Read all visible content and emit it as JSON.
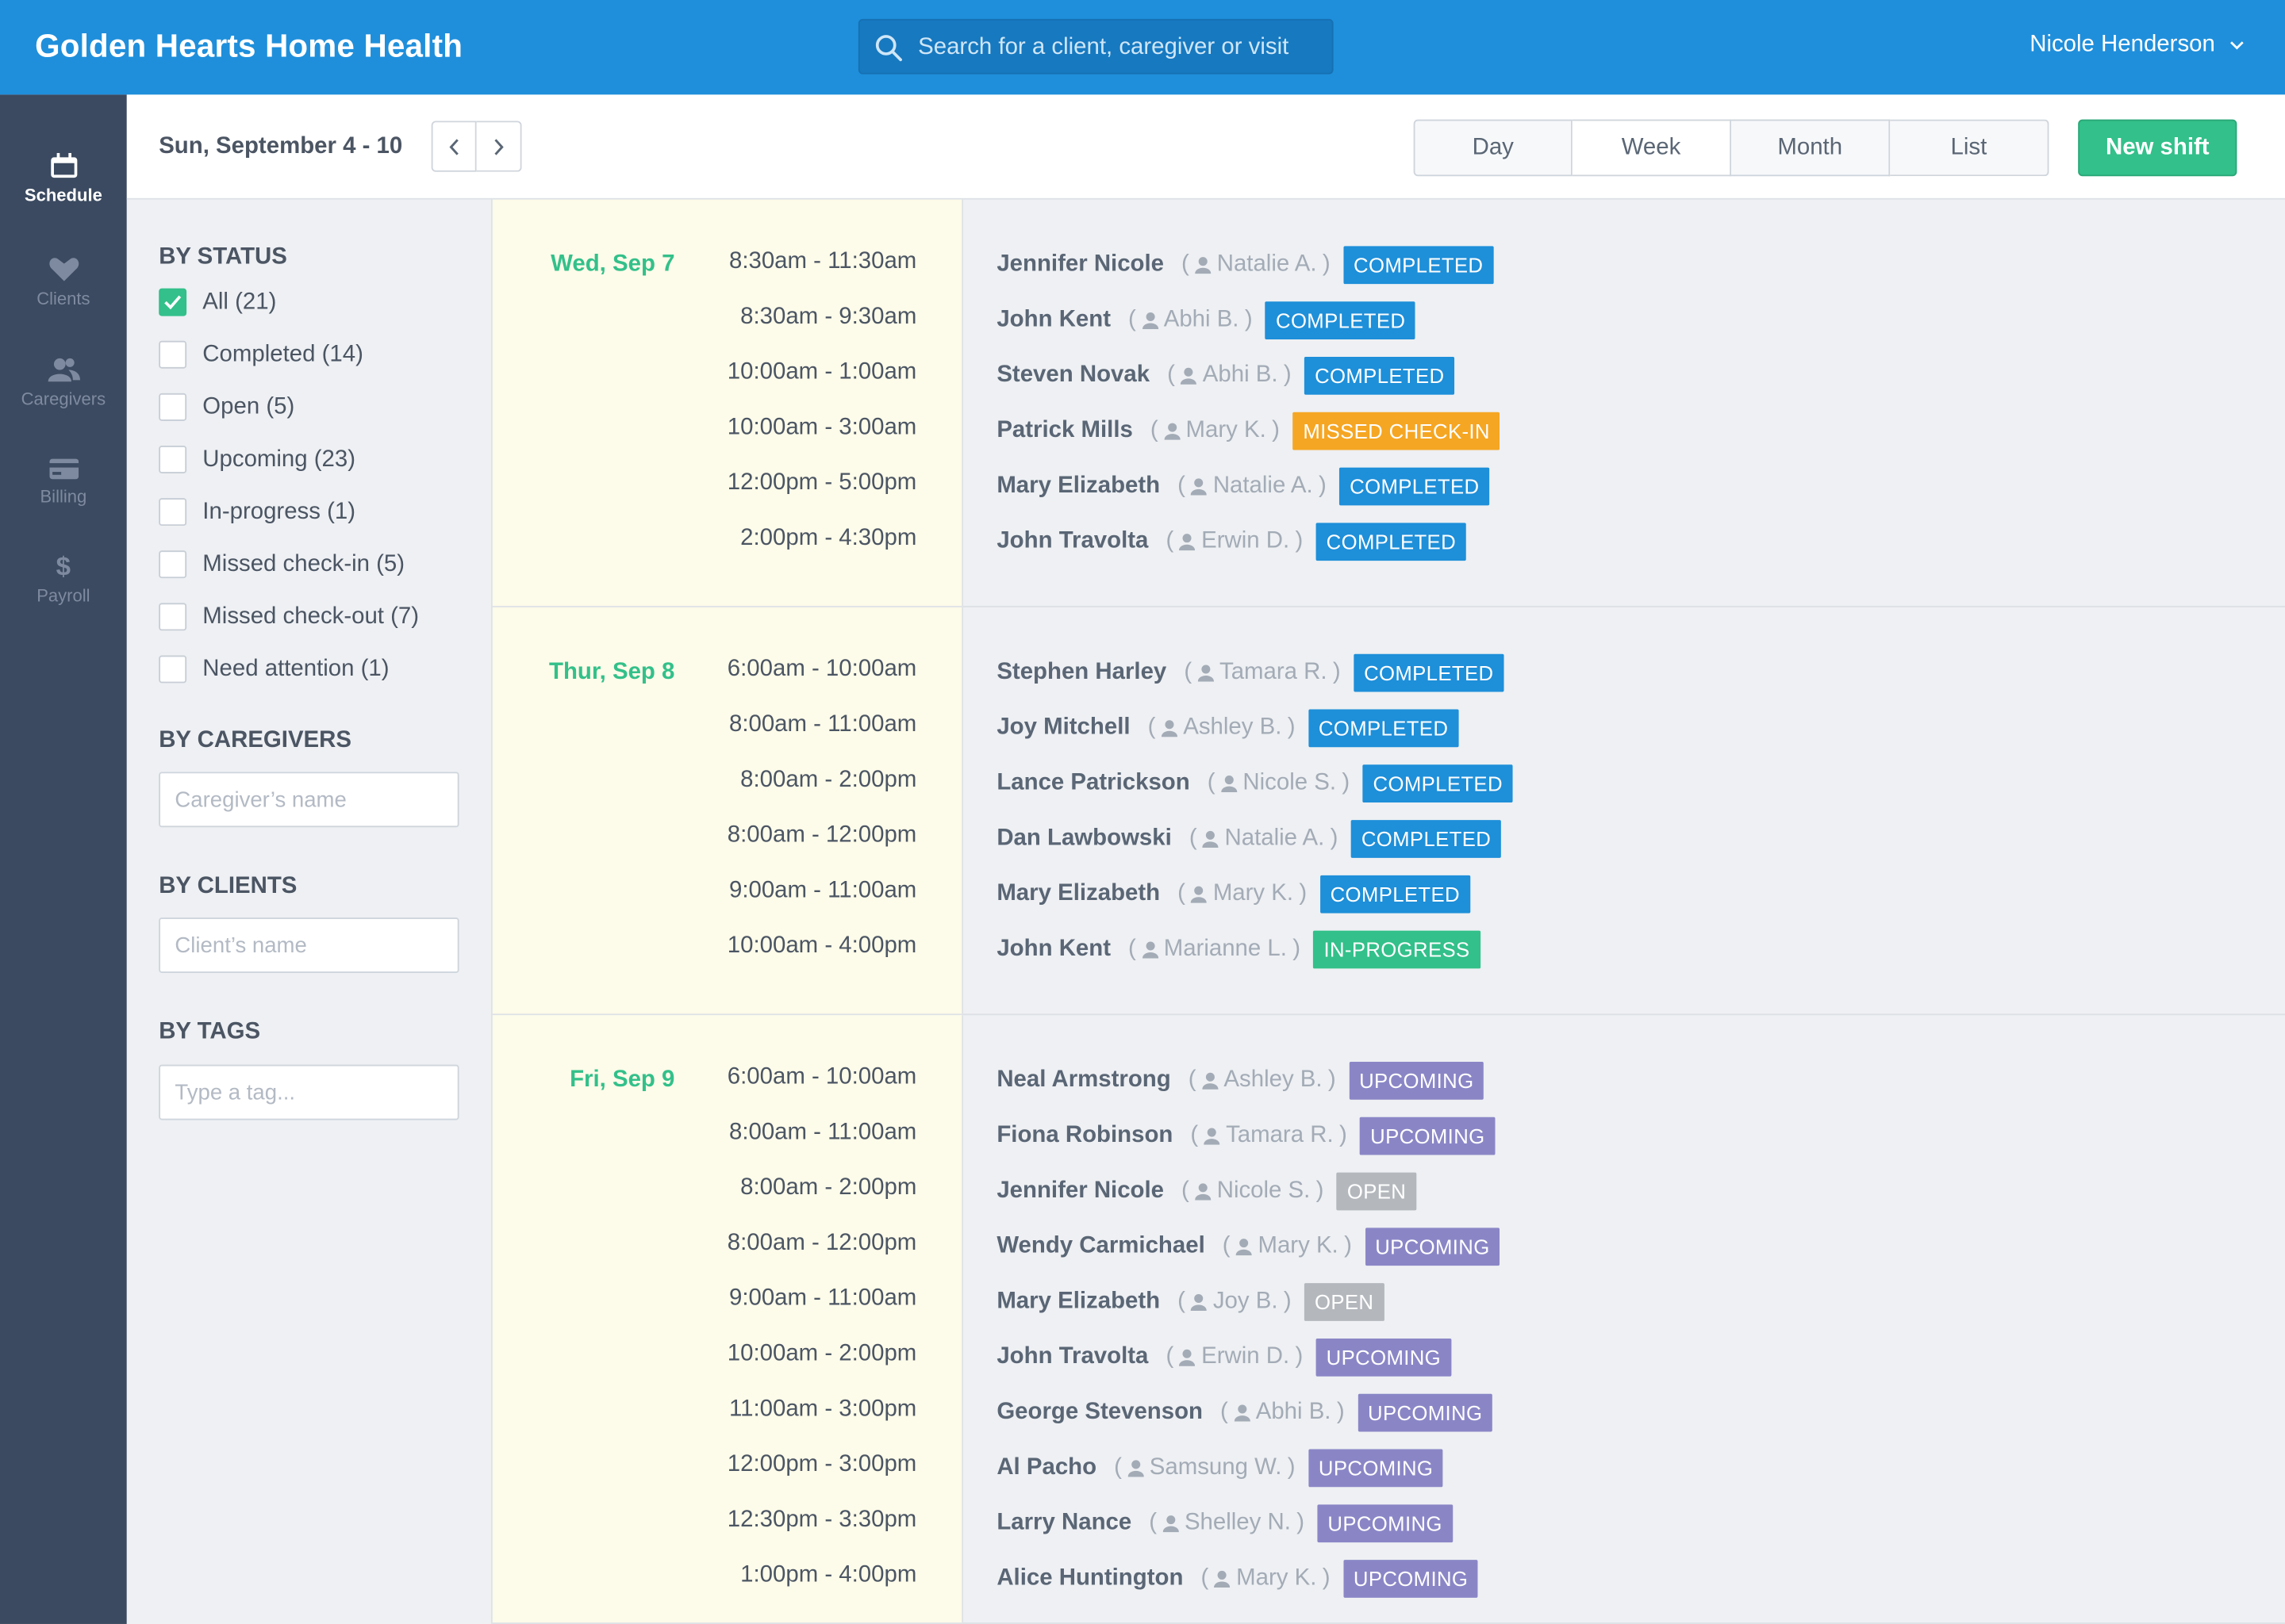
{
  "app": {
    "title": "Golden Hearts Home Health"
  },
  "search": {
    "placeholder": "Search for a client, caregiver or visit"
  },
  "user": {
    "name": "Nicole Henderson"
  },
  "nav": [
    {
      "label": "Schedule",
      "icon": "calendar-icon",
      "active": true
    },
    {
      "label": "Clients",
      "icon": "heart-icon",
      "active": false
    },
    {
      "label": "Caregivers",
      "icon": "people-icon",
      "active": false
    },
    {
      "label": "Billing",
      "icon": "credit-card-icon",
      "active": false
    },
    {
      "label": "Payroll",
      "icon": "dollar-icon",
      "active": false
    }
  ],
  "header": {
    "range": "Sun, September 4 - 10",
    "views": [
      "Day",
      "Week",
      "Month",
      "List"
    ],
    "active_view": "Week",
    "new_shift": "New shift"
  },
  "filters": {
    "by_status": "BY STATUS",
    "statuses": [
      {
        "label": "All (21)",
        "checked": true
      },
      {
        "label": "Completed (14)",
        "checked": false
      },
      {
        "label": "Open (5)",
        "checked": false
      },
      {
        "label": "Upcoming (23)",
        "checked": false
      },
      {
        "label": "In-progress (1)",
        "checked": false
      },
      {
        "label": "Missed check-in (5)",
        "checked": false
      },
      {
        "label": "Missed check-out (7)",
        "checked": false
      },
      {
        "label": "Need attention (1)",
        "checked": false
      }
    ],
    "by_caregivers": "BY CAREGIVERS",
    "caregiver_placeholder": "Caregiver’s name",
    "by_clients": "BY CLIENTS",
    "client_placeholder": "Client’s name",
    "by_tags": "BY TAGS",
    "tag_placeholder": "Type a tag..."
  },
  "status_colors": {
    "COMPLETED": "#1e8fd9",
    "MISSED CHECK-IN": "#f5a623",
    "IN-PROGRESS": "#33c08a",
    "UPCOMING": "#8a86c6",
    "OPEN": "#b4b8bd"
  },
  "days": [
    {
      "label": "Wed, Sep 7",
      "shifts": [
        {
          "time": "8:30am - 11:30am",
          "client": "Jennifer Nicole",
          "caregiver": "Natalie A.",
          "status": "COMPLETED"
        },
        {
          "time": "8:30am - 9:30am",
          "client": "John Kent",
          "caregiver": "Abhi B.",
          "status": "COMPLETED"
        },
        {
          "time": "10:00am - 1:00am",
          "client": "Steven Novak",
          "caregiver": "Abhi B.",
          "status": "COMPLETED"
        },
        {
          "time": "10:00am - 3:00am",
          "client": "Patrick Mills",
          "caregiver": "Mary K.",
          "status": "MISSED CHECK-IN"
        },
        {
          "time": "12:00pm - 5:00pm",
          "client": "Mary Elizabeth",
          "caregiver": "Natalie A.",
          "status": "COMPLETED"
        },
        {
          "time": "2:00pm - 4:30pm",
          "client": "John Travolta",
          "caregiver": "Erwin D.",
          "status": "COMPLETED"
        }
      ]
    },
    {
      "label": "Thur, Sep 8",
      "shifts": [
        {
          "time": "6:00am - 10:00am",
          "client": "Stephen Harley",
          "caregiver": "Tamara R.",
          "status": "COMPLETED"
        },
        {
          "time": "8:00am - 11:00am",
          "client": "Joy Mitchell",
          "caregiver": "Ashley B.",
          "status": "COMPLETED"
        },
        {
          "time": "8:00am - 2:00pm",
          "client": "Lance Patrickson",
          "caregiver": "Nicole S.",
          "status": "COMPLETED"
        },
        {
          "time": "8:00am - 12:00pm",
          "client": "Dan Lawbowski",
          "caregiver": "Natalie A.",
          "status": "COMPLETED"
        },
        {
          "time": "9:00am - 11:00am",
          "client": "Mary Elizabeth",
          "caregiver": "Mary K.",
          "status": "COMPLETED"
        },
        {
          "time": "10:00am - 4:00pm",
          "client": "John Kent",
          "caregiver": "Marianne L.",
          "status": "IN-PROGRESS"
        }
      ]
    },
    {
      "label": "Fri, Sep 9",
      "shifts": [
        {
          "time": "6:00am - 10:00am",
          "client": "Neal Armstrong",
          "caregiver": "Ashley B.",
          "status": "UPCOMING"
        },
        {
          "time": "8:00am - 11:00am",
          "client": "Fiona Robinson",
          "caregiver": "Tamara R.",
          "status": "UPCOMING"
        },
        {
          "time": "8:00am - 2:00pm",
          "client": "Jennifer Nicole",
          "caregiver": "Nicole S.",
          "status": "OPEN"
        },
        {
          "time": "8:00am - 12:00pm",
          "client": "Wendy Carmichael",
          "caregiver": "Mary K.",
          "status": "UPCOMING"
        },
        {
          "time": "9:00am - 11:00am",
          "client": "Mary Elizabeth",
          "caregiver": "Joy B.",
          "status": "OPEN"
        },
        {
          "time": "10:00am - 2:00pm",
          "client": "John Travolta",
          "caregiver": "Erwin D.",
          "status": "UPCOMING"
        },
        {
          "time": "11:00am - 3:00pm",
          "client": "George Stevenson",
          "caregiver": "Abhi B.",
          "status": "UPCOMING"
        },
        {
          "time": "12:00pm - 3:00pm",
          "client": "Al Pacho",
          "caregiver": "Samsung W.",
          "status": "UPCOMING"
        },
        {
          "time": "12:30pm - 3:30pm",
          "client": "Larry Nance",
          "caregiver": "Shelley N.",
          "status": "UPCOMING"
        },
        {
          "time": "1:00pm - 4:00pm",
          "client": "Alice Huntington",
          "caregiver": "Mary K.",
          "status": "UPCOMING"
        }
      ]
    }
  ]
}
